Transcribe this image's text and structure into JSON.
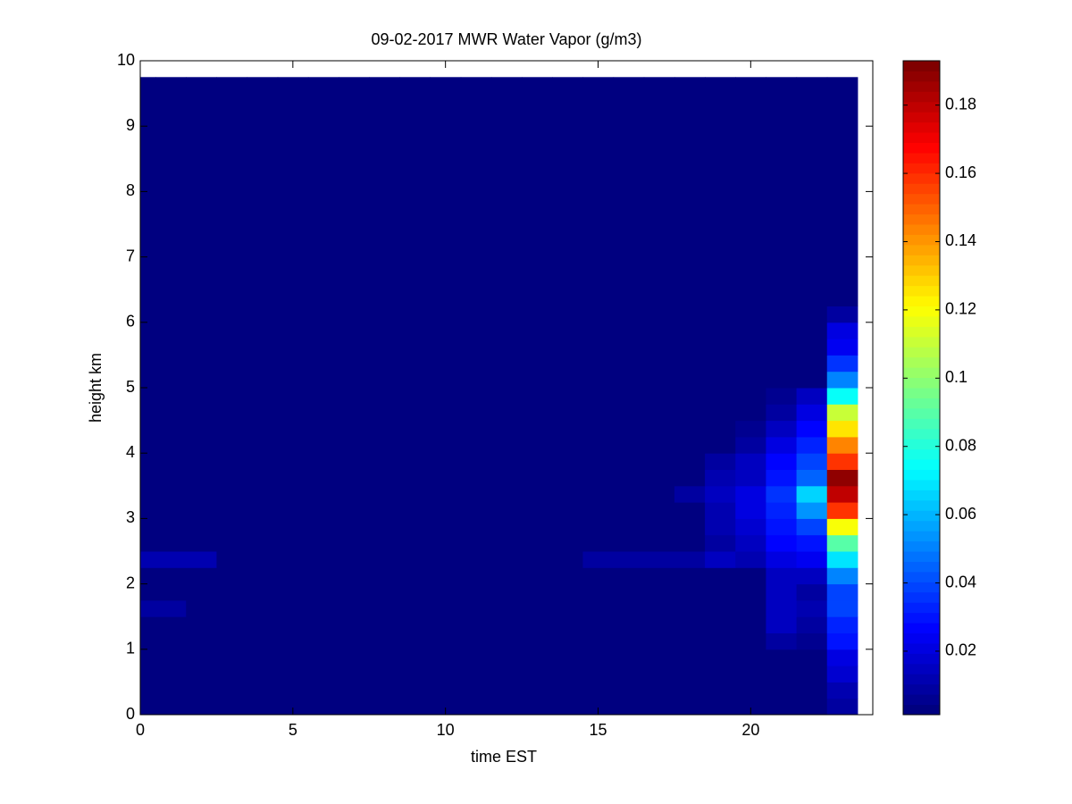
{
  "chart_data": {
    "type": "heatmap",
    "title": "09-02-2017 MWR Water Vapor (g/m3)",
    "xlabel": "time EST",
    "ylabel": "height km",
    "x_edges": [
      0,
      0.5,
      1.5,
      2.5,
      3.5,
      4.5,
      5.5,
      6.5,
      7.5,
      8.5,
      9.5,
      10.5,
      11.5,
      12.5,
      13.5,
      14.5,
      15.5,
      16.5,
      17.5,
      18.5,
      19.5,
      20.5,
      21.5,
      22.5,
      23.5
    ],
    "y_edges": [
      0,
      0.25,
      0.5,
      0.75,
      1,
      1.25,
      1.5,
      1.75,
      2,
      2.25,
      2.5,
      2.75,
      3,
      3.25,
      3.5,
      3.75,
      4,
      4.25,
      4.5,
      4.75,
      5,
      5.25,
      5.5,
      5.75,
      6,
      6.25,
      9.75
    ],
    "values": [
      [
        0.004,
        0.004,
        0.004,
        0.004,
        0.004,
        0.004,
        0.004,
        0.004,
        0.004,
        0.004,
        0.004,
        0.004,
        0.004,
        0.004,
        0.004,
        0.004,
        0.004,
        0.004,
        0.004,
        0.004,
        0.004,
        0.004,
        0.004,
        0.008
      ],
      [
        0.004,
        0.004,
        0.004,
        0.004,
        0.004,
        0.004,
        0.004,
        0.004,
        0.004,
        0.004,
        0.004,
        0.004,
        0.004,
        0.004,
        0.004,
        0.004,
        0.004,
        0.004,
        0.004,
        0.004,
        0.004,
        0.004,
        0.004,
        0.012
      ],
      [
        0.004,
        0.004,
        0.004,
        0.004,
        0.004,
        0.004,
        0.004,
        0.004,
        0.004,
        0.004,
        0.004,
        0.004,
        0.004,
        0.004,
        0.004,
        0.004,
        0.004,
        0.004,
        0.004,
        0.004,
        0.004,
        0.004,
        0.004,
        0.018
      ],
      [
        0.004,
        0.004,
        0.004,
        0.004,
        0.004,
        0.004,
        0.004,
        0.004,
        0.004,
        0.004,
        0.004,
        0.004,
        0.004,
        0.004,
        0.004,
        0.004,
        0.004,
        0.004,
        0.004,
        0.004,
        0.004,
        0.004,
        0.004,
        0.02
      ],
      [
        0.004,
        0.004,
        0.004,
        0.004,
        0.004,
        0.004,
        0.004,
        0.004,
        0.004,
        0.004,
        0.004,
        0.004,
        0.004,
        0.004,
        0.004,
        0.004,
        0.004,
        0.004,
        0.004,
        0.004,
        0.004,
        0.01,
        0.006,
        0.03
      ],
      [
        0.004,
        0.004,
        0.004,
        0.004,
        0.004,
        0.004,
        0.004,
        0.004,
        0.004,
        0.004,
        0.004,
        0.004,
        0.004,
        0.004,
        0.004,
        0.004,
        0.004,
        0.004,
        0.004,
        0.004,
        0.004,
        0.014,
        0.008,
        0.032
      ],
      [
        0.008,
        0.008,
        0.004,
        0.004,
        0.004,
        0.004,
        0.004,
        0.004,
        0.004,
        0.004,
        0.004,
        0.004,
        0.004,
        0.004,
        0.004,
        0.004,
        0.004,
        0.004,
        0.004,
        0.004,
        0.004,
        0.016,
        0.012,
        0.04
      ],
      [
        0.004,
        0.004,
        0.004,
        0.004,
        0.004,
        0.004,
        0.004,
        0.004,
        0.004,
        0.004,
        0.004,
        0.004,
        0.004,
        0.004,
        0.004,
        0.004,
        0.004,
        0.004,
        0.004,
        0.004,
        0.004,
        0.014,
        0.01,
        0.038
      ],
      [
        0.004,
        0.004,
        0.004,
        0.004,
        0.004,
        0.004,
        0.004,
        0.004,
        0.004,
        0.004,
        0.004,
        0.004,
        0.004,
        0.004,
        0.004,
        0.004,
        0.004,
        0.004,
        0.004,
        0.004,
        0.004,
        0.016,
        0.014,
        0.05
      ],
      [
        0.012,
        0.012,
        0.012,
        0.004,
        0.004,
        0.004,
        0.004,
        0.004,
        0.004,
        0.004,
        0.004,
        0.004,
        0.004,
        0.004,
        0.004,
        0.01,
        0.01,
        0.01,
        0.01,
        0.014,
        0.012,
        0.022,
        0.024,
        0.07
      ],
      [
        0.004,
        0.004,
        0.004,
        0.004,
        0.004,
        0.004,
        0.004,
        0.004,
        0.004,
        0.004,
        0.004,
        0.004,
        0.004,
        0.004,
        0.004,
        0.004,
        0.004,
        0.004,
        0.004,
        0.01,
        0.014,
        0.026,
        0.03,
        0.09
      ],
      [
        0.004,
        0.004,
        0.004,
        0.004,
        0.004,
        0.004,
        0.004,
        0.004,
        0.004,
        0.004,
        0.004,
        0.004,
        0.004,
        0.004,
        0.004,
        0.004,
        0.004,
        0.004,
        0.004,
        0.012,
        0.018,
        0.03,
        0.04,
        0.12
      ],
      [
        0.004,
        0.004,
        0.004,
        0.004,
        0.004,
        0.004,
        0.004,
        0.004,
        0.004,
        0.004,
        0.004,
        0.004,
        0.004,
        0.004,
        0.004,
        0.004,
        0.004,
        0.004,
        0.004,
        0.012,
        0.02,
        0.034,
        0.055,
        0.16
      ],
      [
        0.004,
        0.004,
        0.004,
        0.004,
        0.004,
        0.004,
        0.004,
        0.004,
        0.004,
        0.004,
        0.004,
        0.004,
        0.004,
        0.004,
        0.004,
        0.004,
        0.004,
        0.004,
        0.008,
        0.014,
        0.02,
        0.036,
        0.065,
        0.18
      ],
      [
        0.004,
        0.004,
        0.004,
        0.004,
        0.004,
        0.004,
        0.004,
        0.004,
        0.004,
        0.004,
        0.004,
        0.004,
        0.004,
        0.004,
        0.004,
        0.004,
        0.004,
        0.004,
        0.004,
        0.012,
        0.016,
        0.03,
        0.045,
        0.19
      ],
      [
        0.004,
        0.004,
        0.004,
        0.004,
        0.004,
        0.004,
        0.004,
        0.004,
        0.004,
        0.004,
        0.004,
        0.004,
        0.004,
        0.004,
        0.004,
        0.004,
        0.004,
        0.004,
        0.004,
        0.01,
        0.014,
        0.026,
        0.04,
        0.16
      ],
      [
        0.004,
        0.004,
        0.004,
        0.004,
        0.004,
        0.004,
        0.004,
        0.004,
        0.004,
        0.004,
        0.004,
        0.004,
        0.004,
        0.004,
        0.004,
        0.004,
        0.004,
        0.004,
        0.004,
        0.004,
        0.01,
        0.022,
        0.034,
        0.145
      ],
      [
        0.004,
        0.004,
        0.004,
        0.004,
        0.004,
        0.004,
        0.004,
        0.004,
        0.004,
        0.004,
        0.004,
        0.004,
        0.004,
        0.004,
        0.004,
        0.004,
        0.004,
        0.004,
        0.004,
        0.004,
        0.006,
        0.016,
        0.028,
        0.125
      ],
      [
        0.004,
        0.004,
        0.004,
        0.004,
        0.004,
        0.004,
        0.004,
        0.004,
        0.004,
        0.004,
        0.004,
        0.004,
        0.004,
        0.004,
        0.004,
        0.004,
        0.004,
        0.004,
        0.004,
        0.004,
        0.004,
        0.01,
        0.022,
        0.11
      ],
      [
        0.004,
        0.004,
        0.004,
        0.004,
        0.004,
        0.004,
        0.004,
        0.004,
        0.004,
        0.004,
        0.004,
        0.004,
        0.004,
        0.004,
        0.004,
        0.004,
        0.004,
        0.004,
        0.004,
        0.004,
        0.004,
        0.006,
        0.014,
        0.075
      ],
      [
        0.004,
        0.004,
        0.004,
        0.004,
        0.004,
        0.004,
        0.004,
        0.004,
        0.004,
        0.004,
        0.004,
        0.004,
        0.004,
        0.004,
        0.004,
        0.004,
        0.004,
        0.004,
        0.004,
        0.004,
        0.004,
        0.004,
        0.004,
        0.05
      ],
      [
        0.004,
        0.004,
        0.004,
        0.004,
        0.004,
        0.004,
        0.004,
        0.004,
        0.004,
        0.004,
        0.004,
        0.004,
        0.004,
        0.004,
        0.004,
        0.004,
        0.004,
        0.004,
        0.004,
        0.004,
        0.004,
        0.004,
        0.004,
        0.035
      ],
      [
        0.004,
        0.004,
        0.004,
        0.004,
        0.004,
        0.004,
        0.004,
        0.004,
        0.004,
        0.004,
        0.004,
        0.004,
        0.004,
        0.004,
        0.004,
        0.004,
        0.004,
        0.004,
        0.004,
        0.004,
        0.004,
        0.004,
        0.004,
        0.025
      ],
      [
        0.004,
        0.004,
        0.004,
        0.004,
        0.004,
        0.004,
        0.004,
        0.004,
        0.004,
        0.004,
        0.004,
        0.004,
        0.004,
        0.004,
        0.004,
        0.004,
        0.004,
        0.004,
        0.004,
        0.004,
        0.004,
        0.004,
        0.004,
        0.02
      ],
      [
        0.004,
        0.004,
        0.004,
        0.004,
        0.004,
        0.004,
        0.004,
        0.004,
        0.004,
        0.004,
        0.004,
        0.004,
        0.004,
        0.004,
        0.004,
        0.004,
        0.004,
        0.004,
        0.004,
        0.004,
        0.004,
        0.004,
        0.004,
        0.01
      ],
      [
        0.004,
        0.004,
        0.004,
        0.004,
        0.004,
        0.004,
        0.004,
        0.004,
        0.004,
        0.004,
        0.004,
        0.004,
        0.004,
        0.004,
        0.004,
        0.004,
        0.004,
        0.004,
        0.004,
        0.004,
        0.004,
        0.004,
        0.004,
        0.004
      ]
    ],
    "xlim": [
      0,
      24
    ],
    "ylim": [
      0,
      10
    ],
    "xticks": [
      0,
      5,
      10,
      15,
      20
    ],
    "yticks": [
      0,
      1,
      2,
      3,
      4,
      5,
      6,
      7,
      8,
      9,
      10
    ],
    "colormap": "jet",
    "clim": [
      0.0014,
      0.193
    ],
    "cticks": [
      0.02,
      0.04,
      0.06,
      0.08,
      0.1,
      0.12,
      0.14,
      0.16,
      0.18
    ]
  }
}
